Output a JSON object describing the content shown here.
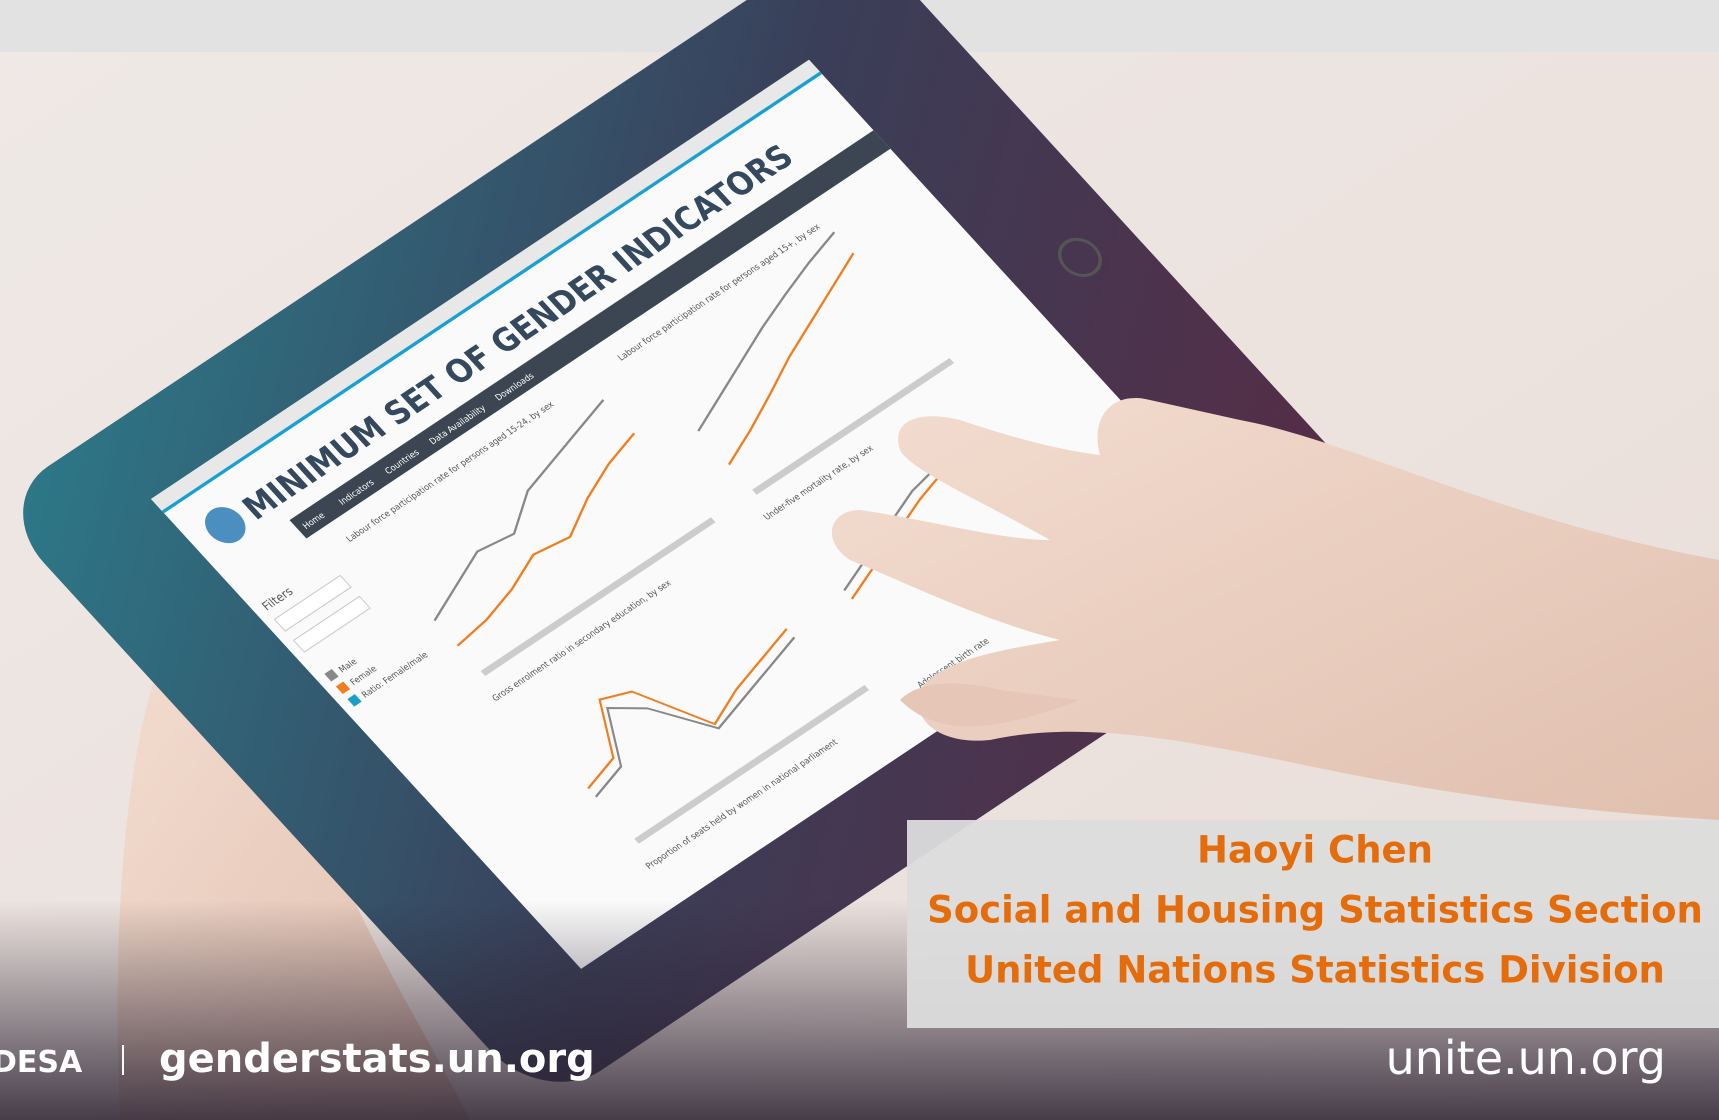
{
  "tablet": {
    "title": "MINIMUM SET OF GENDER INDICATORS",
    "nav": [
      "Home",
      "Indicators",
      "Countries",
      "Data Availability",
      "Downloads"
    ],
    "filters": "Filters",
    "legend": [
      "Male",
      "Female",
      "Ratio: Female/male"
    ],
    "charts": [
      "Labour force participation rate for persons aged 15-24, by sex",
      "Labour force participation rate for persons aged 15+, by sex",
      "Gross enrolment ratio in secondary education, by sex",
      "Under-five mortality rate, by sex",
      "Proportion of seats held by women in national parliament",
      "Adolescent birth rate"
    ]
  },
  "presenter": {
    "name": "Haoyi Chen",
    "section": "Social and Housing Statistics Section",
    "division": "United Nations Statistics Division"
  },
  "footer": {
    "desa": "DESA",
    "url": "genderstats.un.org",
    "unite": "unite.un.org"
  }
}
